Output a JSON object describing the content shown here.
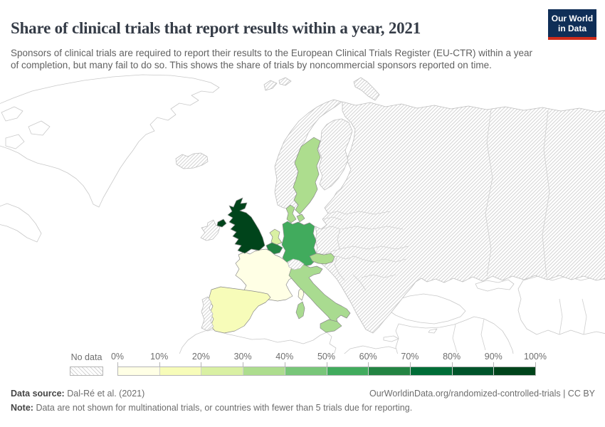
{
  "header": {
    "title": "Share of clinical trials that report results within a year, 2021",
    "subtitle": "Sponsors of clinical trials are required to report their results to the European Clinical Trials Register (EU-CTR) within a year of completion, but many fail to do so. This shows the share of trials by noncommercial sponsors reported on time.",
    "logo": {
      "line1": "Our World",
      "line2": "in Data",
      "bg_color": "#0f2e57",
      "accent_color": "#cf2c1a"
    }
  },
  "legend": {
    "no_data_label": "No data",
    "tick_labels": [
      "0%",
      "10%",
      "20%",
      "30%",
      "40%",
      "50%",
      "60%",
      "70%",
      "80%",
      "90%",
      "100%"
    ],
    "bin_colors": [
      "#ffffe5",
      "#f7fcb9",
      "#d9f0a3",
      "#addd8e",
      "#78c679",
      "#41ab5d",
      "#238443",
      "#006d37",
      "#00542a",
      "#00441b"
    ]
  },
  "footer": {
    "source_label": "Data source:",
    "source_text": "Dal-Ré et al. (2021)",
    "right_text": "OurWorldinData.org/randomized-controlled-trials | CC BY",
    "note_label": "Note:",
    "note_text": "Data are not shown for multinational trials, or countries with fewer than 5 trials due for reporting."
  },
  "chart_data": {
    "type": "choropleth",
    "title": "Share of clinical trials that report results within a year",
    "year": 2021,
    "unit": "%",
    "region_shown": "Europe",
    "legend_bins": [
      {
        "range": "0-10%",
        "color": "#ffffe5"
      },
      {
        "range": "10-20%",
        "color": "#f7fcb9"
      },
      {
        "range": "20-30%",
        "color": "#d9f0a3"
      },
      {
        "range": "30-40%",
        "color": "#addd8e"
      },
      {
        "range": "40-50%",
        "color": "#78c679"
      },
      {
        "range": "50-60%",
        "color": "#41ab5d"
      },
      {
        "range": "60-70%",
        "color": "#238443"
      },
      {
        "range": "70-80%",
        "color": "#006d37"
      },
      {
        "range": "80-90%",
        "color": "#00542a"
      },
      {
        "range": "90-100%",
        "color": "#00441b"
      }
    ],
    "countries": [
      {
        "name": "United Kingdom",
        "approx_value": "90-100%",
        "color": "#00441b"
      },
      {
        "name": "Belgium",
        "approx_value": "60-70%",
        "color": "#238443"
      },
      {
        "name": "Germany",
        "approx_value": "50-60%",
        "color": "#41ab5d"
      },
      {
        "name": "Denmark",
        "approx_value": "30-40%",
        "color": "#addd8e"
      },
      {
        "name": "Sweden",
        "approx_value": "30-40%",
        "color": "#addd8e"
      },
      {
        "name": "Austria",
        "approx_value": "30-40%",
        "color": "#addd8e"
      },
      {
        "name": "Italy",
        "approx_value": "30-40%",
        "color": "#a9db90"
      },
      {
        "name": "Netherlands",
        "approx_value": "20-30%",
        "color": "#d9f0a3"
      },
      {
        "name": "Spain",
        "approx_value": "10-20%",
        "color": "#f7fcb9"
      },
      {
        "name": "France",
        "approx_value": "0-10%",
        "color": "#ffffe5"
      }
    ],
    "no_data_countries": [
      "Iceland",
      "Ireland",
      "Norway",
      "Finland",
      "Portugal",
      "Switzerland",
      "Poland",
      "Czechia",
      "Slovakia",
      "Hungary",
      "Slovenia",
      "Croatia",
      "Serbia",
      "Bosnia and Herzegovina",
      "Albania",
      "North Macedonia",
      "Greece",
      "Romania",
      "Bulgaria",
      "Estonia",
      "Latvia",
      "Lithuania",
      "Belarus",
      "Ukraine",
      "Moldova",
      "Russia"
    ]
  }
}
